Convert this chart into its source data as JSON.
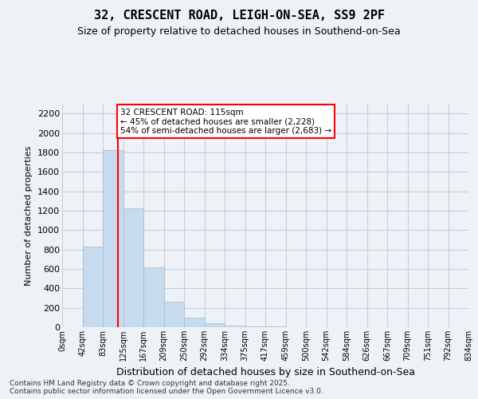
{
  "title": "32, CRESCENT ROAD, LEIGH-ON-SEA, SS9 2PF",
  "subtitle": "Size of property relative to detached houses in Southend-on-Sea",
  "xlabel": "Distribution of detached houses by size in Southend-on-Sea",
  "ylabel": "Number of detached properties",
  "bar_values": [
    0,
    830,
    1820,
    1220,
    620,
    260,
    100,
    40,
    20,
    10,
    5,
    3,
    2,
    1,
    1,
    0,
    0,
    0,
    0,
    0
  ],
  "bin_labels": [
    "0sqm",
    "42sqm",
    "83sqm",
    "125sqm",
    "167sqm",
    "209sqm",
    "250sqm",
    "292sqm",
    "334sqm",
    "375sqm",
    "417sqm",
    "459sqm",
    "500sqm",
    "542sqm",
    "584sqm",
    "626sqm",
    "667sqm",
    "709sqm",
    "751sqm",
    "792sqm",
    "834sqm"
  ],
  "bar_color": "#c6dcee",
  "bar_edgecolor": "#a0bcd0",
  "property_sqm": 115,
  "property_line_label": "32 CRESCENT ROAD: 115sqm",
  "annotation_line1": "← 45% of detached houses are smaller (2,228)",
  "annotation_line2": "54% of semi-detached houses are larger (2,683) →",
  "annotation_box_color": "white",
  "annotation_box_edgecolor": "red",
  "vline_color": "red",
  "ylim": [
    0,
    2300
  ],
  "yticks": [
    0,
    200,
    400,
    600,
    800,
    1000,
    1200,
    1400,
    1600,
    1800,
    2000,
    2200
  ],
  "footer_line1": "Contains HM Land Registry data © Crown copyright and database right 2025.",
  "footer_line2": "Contains public sector information licensed under the Open Government Licence v3.0.",
  "bg_color": "#eef2f7",
  "grid_color": "#c0cfe0"
}
